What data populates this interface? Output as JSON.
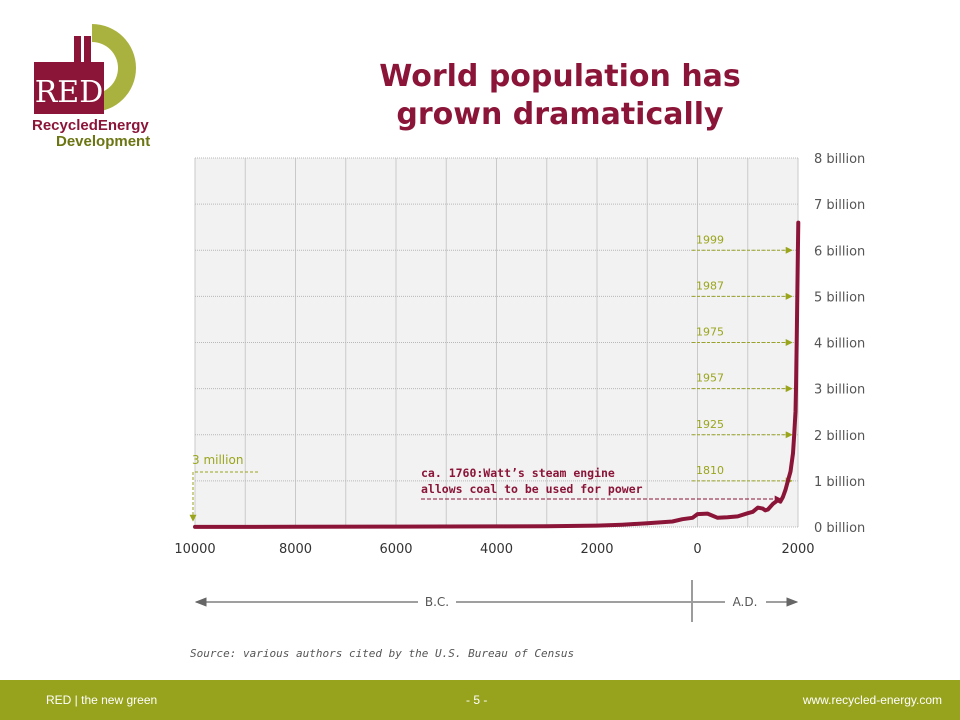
{
  "logo": {
    "mark": "RED",
    "line1": "RecycledEnergy",
    "line2": "Development"
  },
  "title_line1": "World population has",
  "title_line2": "grown dramatically",
  "chart_data": {
    "type": "line",
    "xlabels": [
      "10000",
      "8000",
      "6000",
      "4000",
      "2000",
      "0",
      "2000"
    ],
    "ylabels": [
      "0 billion",
      "1 billion",
      "2 billion",
      "3 billion",
      "4 billion",
      "5 billion",
      "6 billion",
      "7 billion",
      "8 billion"
    ],
    "x_unit_note": "year (BC negative, AD positive)",
    "xlim": [
      -10000,
      2000
    ],
    "ylim": [
      0,
      8
    ],
    "grid": true,
    "series": [
      {
        "x": [
          -10000,
          -8000,
          -6000,
          -4000,
          -3000,
          -2000,
          -1500,
          -1000,
          -500,
          -300,
          -100,
          0,
          200,
          400,
          600,
          800,
          1000,
          1100,
          1200,
          1300,
          1350,
          1400,
          1500,
          1600,
          1650,
          1700,
          1750,
          1800,
          1850,
          1900,
          1925,
          1950,
          1960,
          1975,
          1987,
          1999,
          2005
        ],
        "y": [
          0.003,
          0.005,
          0.008,
          0.012,
          0.015,
          0.03,
          0.05,
          0.08,
          0.12,
          0.17,
          0.2,
          0.28,
          0.29,
          0.2,
          0.21,
          0.23,
          0.3,
          0.33,
          0.42,
          0.4,
          0.36,
          0.38,
          0.5,
          0.58,
          0.55,
          0.65,
          0.8,
          1.0,
          1.2,
          1.6,
          2.0,
          2.5,
          3.0,
          4.0,
          5.0,
          6.0,
          6.6
        ],
        "color": "#8b1538"
      }
    ],
    "year_markers": [
      {
        "year": "1810",
        "value": 1
      },
      {
        "year": "1925",
        "value": 2
      },
      {
        "year": "1957",
        "value": 3
      },
      {
        "year": "1975",
        "value": 4
      },
      {
        "year": "1987",
        "value": 5
      },
      {
        "year": "1999",
        "value": 6
      }
    ],
    "start_annotation": "3 million",
    "annotation_line1": "ca. 1760:Watt’s steam engine",
    "annotation_line2": "allows coal to be used for power",
    "era_bc": "B.C.",
    "era_ad": "A.D.",
    "colors": {
      "line": "#8b1538",
      "marker": "#9aa51c",
      "grid_bg": "#f2f2f2"
    }
  },
  "source": "Source: various authors cited by the U.S. Bureau of Census",
  "footer": {
    "left": "RED | the new green",
    "center": "- 5 -",
    "right": "www.recycled-energy.com"
  }
}
